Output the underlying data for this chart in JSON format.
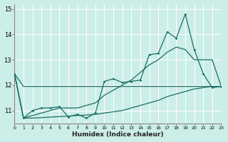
{
  "xlabel": "Humidex (Indice chaleur)",
  "background_color": "#cceee8",
  "line_color": "#1a6e64",
  "grid_color": "#b0ddd8",
  "x_values": [
    0,
    1,
    2,
    3,
    4,
    5,
    6,
    7,
    8,
    9,
    10,
    11,
    12,
    13,
    14,
    15,
    16,
    17,
    18,
    19,
    20,
    21,
    22,
    23
  ],
  "seriesA": [
    12.45,
    11.95,
    11.95,
    11.95,
    11.95,
    11.95,
    11.95,
    11.95,
    11.95,
    11.95,
    11.95,
    11.95,
    11.95,
    11.95,
    11.95,
    11.95,
    11.95,
    11.95,
    11.95,
    11.95,
    11.95,
    11.95,
    11.95,
    11.95
  ],
  "seriesB": [
    12.45,
    10.7,
    11.0,
    11.1,
    11.1,
    11.15,
    10.75,
    10.85,
    10.7,
    10.9,
    12.15,
    12.25,
    12.1,
    12.15,
    12.2,
    13.2,
    13.25,
    14.1,
    13.85,
    14.8,
    13.4,
    12.45,
    11.9,
    11.95
  ],
  "seriesC": [
    12.45,
    10.7,
    10.8,
    10.9,
    11.0,
    11.1,
    11.1,
    11.1,
    11.2,
    11.3,
    11.6,
    11.8,
    12.0,
    12.2,
    12.5,
    12.8,
    13.0,
    13.3,
    13.5,
    13.4,
    13.0,
    13.0,
    13.0,
    11.95
  ],
  "seriesD": [
    12.45,
    10.7,
    10.7,
    10.72,
    10.74,
    10.76,
    10.78,
    10.8,
    10.82,
    10.85,
    10.9,
    10.95,
    11.0,
    11.1,
    11.2,
    11.3,
    11.4,
    11.55,
    11.65,
    11.75,
    11.85,
    11.9,
    11.95,
    11.95
  ],
  "xlim": [
    0,
    23
  ],
  "ylim": [
    10.5,
    15.2
  ],
  "yticks": [
    11,
    12,
    13,
    14,
    15
  ],
  "xtick_labels": [
    "0",
    "1",
    "2",
    "3",
    "4",
    "5",
    "6",
    "7",
    "8",
    "9",
    "10",
    "11",
    "12",
    "13",
    "14",
    "15",
    "16",
    "17",
    "18",
    "19",
    "20",
    "21",
    "22",
    "23"
  ]
}
